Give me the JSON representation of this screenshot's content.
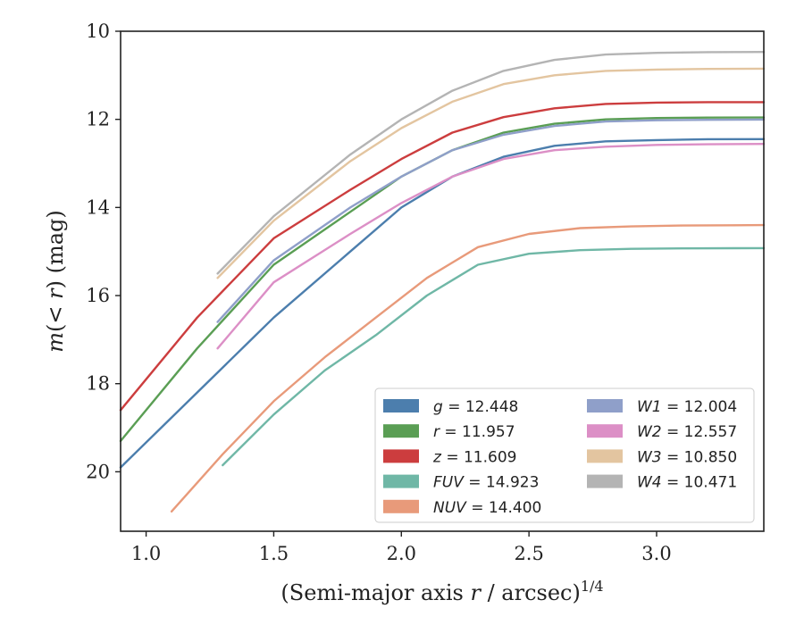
{
  "chart_data": {
    "type": "line",
    "xlabel": "(Semi-major axis r / arcsec)^1/4",
    "ylabel": "m(<r) (mag)",
    "xlim": [
      0.9,
      3.42
    ],
    "ylim": [
      21.35,
      10.0
    ],
    "y_inverted": true,
    "x_ticks": [
      "1.0",
      "1.5",
      "2.0",
      "2.5",
      "3.0"
    ],
    "y_ticks": [
      "10",
      "12",
      "14",
      "16",
      "18",
      "20"
    ],
    "grid": false,
    "legend_position": "lower-right",
    "legend_columns": 2,
    "series": [
      {
        "name": "g",
        "label": "g = 12.448",
        "color": "#4c7ead",
        "x": [
          0.9,
          1.2,
          1.5,
          1.8,
          2.0,
          2.2,
          2.4,
          2.6,
          2.8,
          3.0,
          3.2,
          3.42
        ],
        "y": [
          19.9,
          18.2,
          16.5,
          15.0,
          14.0,
          13.3,
          12.85,
          12.6,
          12.5,
          12.47,
          12.45,
          12.448
        ]
      },
      {
        "name": "r",
        "label": "r = 11.957",
        "color": "#5a9e54",
        "x": [
          0.9,
          1.2,
          1.5,
          1.8,
          2.0,
          2.2,
          2.4,
          2.6,
          2.8,
          3.0,
          3.2,
          3.42
        ],
        "y": [
          19.3,
          17.2,
          15.3,
          14.1,
          13.3,
          12.7,
          12.3,
          12.1,
          12.0,
          11.97,
          11.96,
          11.957
        ]
      },
      {
        "name": "z",
        "label": "z = 11.609",
        "color": "#cc3d3e",
        "x": [
          0.9,
          1.2,
          1.5,
          1.8,
          2.0,
          2.2,
          2.4,
          2.6,
          2.8,
          3.0,
          3.2,
          3.42
        ],
        "y": [
          18.6,
          16.5,
          14.7,
          13.6,
          12.9,
          12.3,
          11.95,
          11.75,
          11.65,
          11.62,
          11.61,
          11.609
        ]
      },
      {
        "name": "FUV",
        "label": "FUV = 14.923",
        "color": "#6fb7a6",
        "x": [
          1.3,
          1.5,
          1.7,
          1.9,
          2.1,
          2.3,
          2.5,
          2.7,
          2.9,
          3.1,
          3.3,
          3.42
        ],
        "y": [
          19.85,
          18.7,
          17.7,
          16.9,
          16.0,
          15.3,
          15.05,
          14.97,
          14.94,
          14.93,
          14.925,
          14.923
        ]
      },
      {
        "name": "NUV",
        "label": "NUV = 14.400",
        "color": "#e89a7a",
        "x": [
          1.1,
          1.3,
          1.5,
          1.7,
          1.9,
          2.1,
          2.3,
          2.5,
          2.7,
          2.9,
          3.1,
          3.3,
          3.42
        ],
        "y": [
          20.9,
          19.6,
          18.4,
          17.4,
          16.5,
          15.6,
          14.9,
          14.6,
          14.47,
          14.43,
          14.41,
          14.405,
          14.4
        ]
      },
      {
        "name": "W1",
        "label": "W1 = 12.004",
        "color": "#8f9fc9",
        "x": [
          1.28,
          1.5,
          1.8,
          2.0,
          2.2,
          2.4,
          2.6,
          2.8,
          3.0,
          3.2,
          3.42
        ],
        "y": [
          16.6,
          15.2,
          14.0,
          13.3,
          12.7,
          12.35,
          12.15,
          12.05,
          12.02,
          12.01,
          12.004
        ]
      },
      {
        "name": "W2",
        "label": "W2 = 12.557",
        "color": "#dc8fc6",
        "x": [
          1.28,
          1.5,
          1.8,
          2.0,
          2.2,
          2.4,
          2.6,
          2.8,
          3.0,
          3.2,
          3.42
        ],
        "y": [
          17.2,
          15.7,
          14.6,
          13.9,
          13.3,
          12.9,
          12.7,
          12.62,
          12.58,
          12.565,
          12.557
        ]
      },
      {
        "name": "W3",
        "label": "W3 = 10.850",
        "color": "#e3c5a0",
        "x": [
          1.28,
          1.5,
          1.8,
          2.0,
          2.2,
          2.4,
          2.6,
          2.8,
          3.0,
          3.2,
          3.42
        ],
        "y": [
          15.6,
          14.3,
          12.95,
          12.2,
          11.6,
          11.2,
          11.0,
          10.9,
          10.87,
          10.855,
          10.85
        ]
      },
      {
        "name": "W4",
        "label": "W4 = 10.471",
        "color": "#b4b4b4",
        "x": [
          1.28,
          1.5,
          1.8,
          2.0,
          2.2,
          2.4,
          2.6,
          2.8,
          3.0,
          3.2,
          3.42
        ],
        "y": [
          15.5,
          14.2,
          12.8,
          12.0,
          11.35,
          10.9,
          10.65,
          10.53,
          10.49,
          10.475,
          10.471
        ]
      }
    ]
  }
}
